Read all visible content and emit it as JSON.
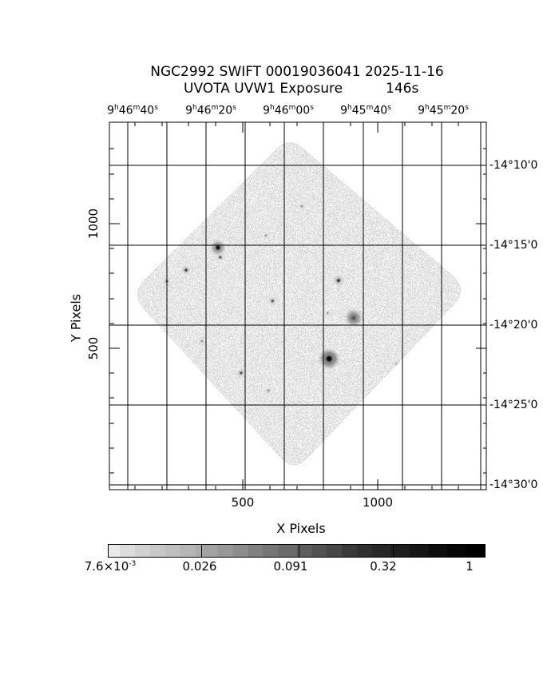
{
  "header": {
    "title": "NGC2992 SWIFT 00019036041 2025-11-16",
    "subtitle": "UVOTA UVW1 Exposure",
    "exposure_time": "146s"
  },
  "axes": {
    "top": {
      "name": "Right Ascension",
      "labels": [
        {
          "parts": [
            [
              "9",
              "h"
            ],
            [
              "46",
              "m"
            ],
            [
              "40",
              "s"
            ]
          ]
        },
        {
          "parts": [
            [
              "9",
              "h"
            ],
            [
              "46",
              "m"
            ],
            [
              "20",
              "s"
            ]
          ]
        },
        {
          "parts": [
            [
              "9",
              "h"
            ],
            [
              "46",
              "m"
            ],
            [
              "00",
              "s"
            ]
          ]
        },
        {
          "parts": [
            [
              "9",
              "h"
            ],
            [
              "45",
              "m"
            ],
            [
              "40",
              "s"
            ]
          ]
        },
        {
          "parts": [
            [
              "9",
              "h"
            ],
            [
              "45",
              "m"
            ],
            [
              "20",
              "s"
            ]
          ]
        }
      ]
    },
    "right": {
      "name": "Declination",
      "labels": [
        "-14°10'0",
        "-14°15'0",
        "-14°20'0",
        "-14°25'0",
        "-14°30'0"
      ]
    },
    "left": {
      "title": "Y Pixels",
      "tick_labels": [
        "1000",
        "500"
      ]
    },
    "bottom": {
      "title": "X Pixels",
      "tick_labels": [
        "500",
        "1000"
      ]
    }
  },
  "colorbar": {
    "labels": [
      {
        "text": "7.6×10",
        "sup": "-3"
      },
      {
        "text": "0.026",
        "sup": ""
      },
      {
        "text": "0.091",
        "sup": ""
      },
      {
        "text": "0.32",
        "sup": ""
      },
      {
        "text": "1",
        "sup": ""
      }
    ]
  },
  "chart_data": {
    "type": "heatmap",
    "title": "NGC2992 SWIFT 00019036041 2025-11-16",
    "subtitle": "UVOTA UVW1 Exposure",
    "exposure_seconds": 146,
    "xlabel": "X Pixels",
    "ylabel": "Y Pixels",
    "x_ticks": [
      500,
      1000
    ],
    "y_ticks": [
      500,
      1000
    ],
    "ra_tick_labels": [
      "9h46m40s",
      "9h46m20s",
      "9h46m00s",
      "9h45m40s",
      "9h45m20s"
    ],
    "dec_tick_labels": [
      "-14°10'0",
      "-14°15'0",
      "-14°20'0",
      "-14°25'0",
      "-14°30'0"
    ],
    "colorbar_values": [
      0.0076,
      0.026,
      0.091,
      0.32,
      1
    ],
    "grid": true,
    "footprint": "square UVOT exposure footprint rotated ~45° (diamond) with rounded corners, filled with uniform speckled exposure noise on white",
    "sources": [
      {
        "x": 820,
        "y": 458,
        "cr": 3.5,
        "co": 0.95,
        "hr": 10,
        "ho": 0.55
      },
      {
        "x": 408,
        "y": 904,
        "cr": 2.5,
        "co": 0.92,
        "hr": 7,
        "ho": 0.5
      },
      {
        "x": 911,
        "y": 622,
        "cr": 2.5,
        "co": 0.4,
        "hr": 8,
        "ho": 0.5
      },
      {
        "x": 855,
        "y": 772,
        "cr": 1.8,
        "co": 0.85,
        "hr": 4,
        "ho": 0.4
      },
      {
        "x": 417,
        "y": 865,
        "cr": 1.5,
        "co": 0.75,
        "hr": 2.5,
        "ho": 0.3
      },
      {
        "x": 290,
        "y": 814,
        "cr": 1.7,
        "co": 0.85,
        "hr": 3,
        "ho": 0.35
      },
      {
        "x": 219,
        "y": 769,
        "cr": 1.3,
        "co": 0.7,
        "hr": 2.5,
        "ho": 0.25
      },
      {
        "x": 610,
        "y": 690,
        "cr": 1.5,
        "co": 0.8,
        "hr": 2.5,
        "ho": 0.3
      },
      {
        "x": 1074,
        "y": 433,
        "cr": 1.5,
        "co": 0.75,
        "hr": 3,
        "ho": 0.3
      },
      {
        "x": 494,
        "y": 401,
        "cr": 1.5,
        "co": 0.75,
        "hr": 3,
        "ho": 0.3
      },
      {
        "x": 586,
        "y": 952,
        "cr": 1.2,
        "co": 0.5,
        "hr": 2,
        "ho": 0.2
      },
      {
        "x": 595,
        "y": 330,
        "cr": 1.2,
        "co": 0.6,
        "hr": 2,
        "ho": 0.2
      },
      {
        "x": 497,
        "y": 192,
        "cr": 1.5,
        "co": 0.7,
        "hr": 3,
        "ho": 0.3
      },
      {
        "x": 349,
        "y": 529,
        "cr": 1.2,
        "co": 0.55,
        "hr": 2,
        "ho": 0.2
      },
      {
        "x": 479,
        "y": 1224,
        "cr": 1.3,
        "co": 0.65,
        "hr": 2.5,
        "ho": 0.25
      },
      {
        "x": 796,
        "y": 77,
        "cr": 1.3,
        "co": 0.6,
        "hr": 2.5,
        "ho": 0.25
      },
      {
        "x": 752,
        "y": 6,
        "cr": 1.2,
        "co": 0.6,
        "hr": 2,
        "ho": 0.2
      },
      {
        "x": 719,
        "y": 1070,
        "cr": 1.1,
        "co": 0.5,
        "hr": 2,
        "ho": 0.2
      },
      {
        "x": 947,
        "y": 1128,
        "cr": 1.0,
        "co": 0.45,
        "hr": 2,
        "ho": 0.2
      },
      {
        "x": 814,
        "y": 641,
        "cr": 1.1,
        "co": 0.5,
        "hr": 2,
        "ho": 0.2
      },
      {
        "x": 1021,
        "y": 1064,
        "cr": 1.0,
        "co": 0.4,
        "hr": 2,
        "ho": 0.2
      }
    ]
  }
}
